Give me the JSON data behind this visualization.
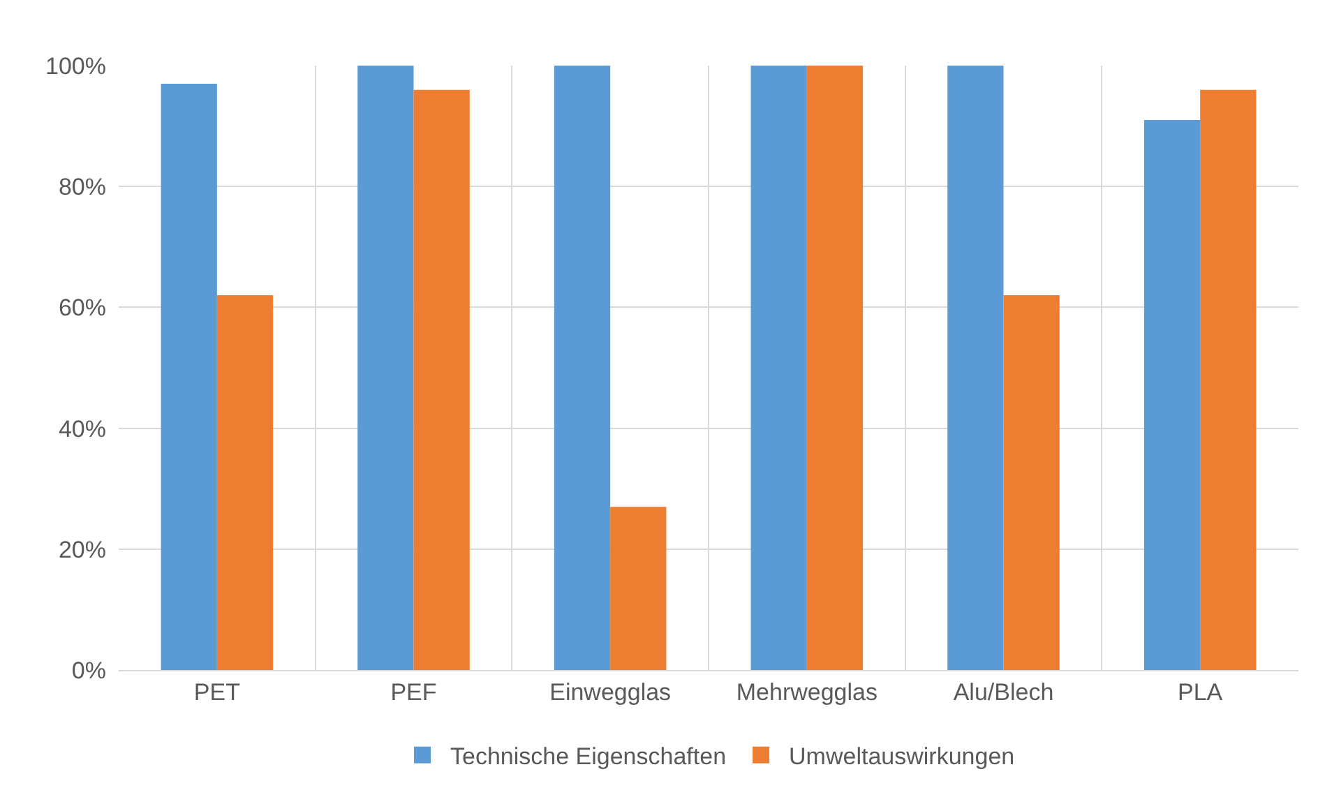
{
  "chart_data": {
    "type": "bar",
    "categories": [
      "PET",
      "PEF",
      "Einwegglas",
      "Mehrwegglas",
      "Alu/Blech",
      "PLA"
    ],
    "series": [
      {
        "name": "Technische Eigenschaften",
        "color": "#5b9bd5",
        "values": [
          97,
          100,
          100,
          100,
          100,
          91
        ]
      },
      {
        "name": "Umweltauswirkungen",
        "color": "#ed7d31",
        "values": [
          62,
          96,
          27,
          100,
          62,
          96
        ]
      }
    ],
    "ylim": [
      0,
      100
    ],
    "yticks": [
      {
        "value": 0,
        "label": "0%"
      },
      {
        "value": 20,
        "label": "20%"
      },
      {
        "value": 40,
        "label": "40%"
      },
      {
        "value": 60,
        "label": "60%"
      },
      {
        "value": 80,
        "label": "80%"
      },
      {
        "value": 100,
        "label": "100%"
      }
    ],
    "grid": true,
    "legend": "bottom"
  }
}
